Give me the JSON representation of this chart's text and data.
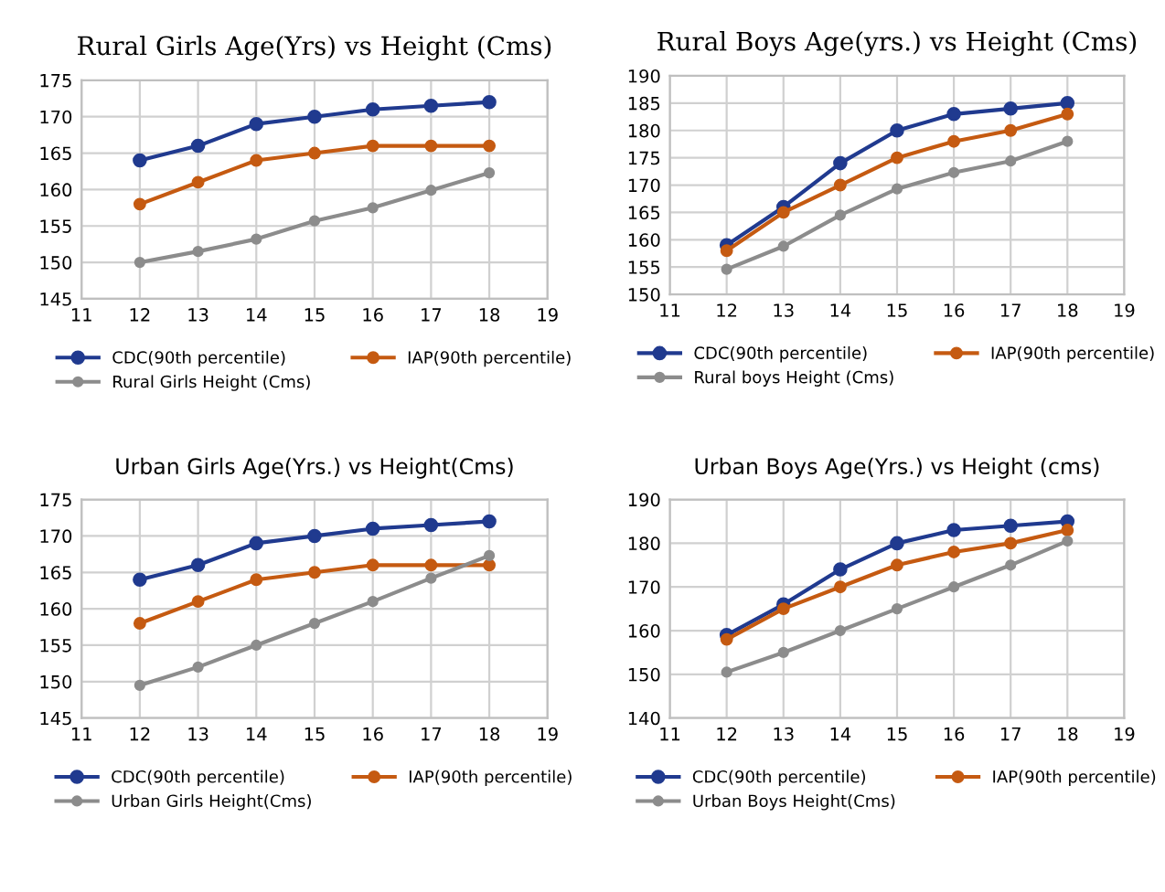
{
  "chart_data": [
    {
      "type": "line",
      "title": "Rural Girls Age(Yrs) vs Height (Cms)",
      "x": [
        12,
        13,
        14,
        15,
        16,
        17,
        18
      ],
      "xlim": [
        11,
        19
      ],
      "xticks": [
        11,
        12,
        13,
        14,
        15,
        16,
        17,
        18,
        19
      ],
      "ylim": [
        145,
        175
      ],
      "yticks": [
        145,
        150,
        155,
        160,
        165,
        170,
        175
      ],
      "grid": true,
      "legend": "bottom",
      "marker": "circle",
      "line_style": "solid",
      "series": [
        {
          "name": "CDC(90th percentile)",
          "color": "#203a8f",
          "values": [
            164,
            166,
            169,
            170,
            171,
            171.5,
            172
          ]
        },
        {
          "name": "IAP(90th percentile)",
          "color": "#c55a11",
          "values": [
            158,
            161,
            164,
            165,
            166,
            166,
            166
          ]
        },
        {
          "name": "Rural Girls Height (Cms)",
          "color": "#8c8c8c",
          "values": [
            150,
            151.5,
            153.2,
            155.7,
            157.5,
            159.9,
            162.3
          ]
        }
      ]
    },
    {
      "type": "line",
      "title": "Rural Boys Age(yrs.) vs Height (Cms)",
      "x": [
        12,
        13,
        14,
        15,
        16,
        17,
        18
      ],
      "xlim": [
        11,
        19
      ],
      "xticks": [
        11,
        12,
        13,
        14,
        15,
        16,
        17,
        18,
        19
      ],
      "ylim": [
        150,
        190
      ],
      "yticks": [
        150,
        155,
        160,
        165,
        170,
        175,
        180,
        185,
        190
      ],
      "grid": true,
      "legend": "bottom",
      "marker": "circle",
      "line_style": "solid",
      "series": [
        {
          "name": "CDC(90th percentile)",
          "color": "#203a8f",
          "values": [
            159,
            166,
            174,
            180,
            183,
            184,
            185
          ]
        },
        {
          "name": "IAP(90th percentile)",
          "color": "#c55a11",
          "values": [
            158,
            165,
            170,
            175,
            178,
            180,
            183
          ]
        },
        {
          "name": "Rural boys Height (Cms)",
          "color": "#8c8c8c",
          "values": [
            154.6,
            158.8,
            164.5,
            169.3,
            172.3,
            174.4,
            178
          ]
        }
      ]
    },
    {
      "type": "line",
      "title": "Urban Girls Age(Yrs.) vs Height(Cms)",
      "x": [
        12,
        13,
        14,
        15,
        16,
        17,
        18
      ],
      "xlim": [
        11,
        19
      ],
      "xticks": [
        11,
        12,
        13,
        14,
        15,
        16,
        17,
        18,
        19
      ],
      "ylim": [
        145,
        175
      ],
      "yticks": [
        145,
        150,
        155,
        160,
        165,
        170,
        175
      ],
      "grid": true,
      "legend": "bottom",
      "marker": "circle",
      "line_style": "solid",
      "series": [
        {
          "name": "CDC(90th percentile)",
          "color": "#203a8f",
          "values": [
            164,
            166,
            169,
            170,
            171,
            171.5,
            172
          ]
        },
        {
          "name": "IAP(90th percentile)",
          "color": "#c55a11",
          "values": [
            158,
            161,
            164,
            165,
            166,
            166,
            166
          ]
        },
        {
          "name": "Urban Girls Height(Cms)",
          "color": "#8c8c8c",
          "values": [
            149.5,
            152,
            155,
            158,
            161,
            164.2,
            167.3
          ]
        }
      ]
    },
    {
      "type": "line",
      "title": "Urban Boys Age(Yrs.) vs Height (cms)",
      "x": [
        12,
        13,
        14,
        15,
        16,
        17,
        18
      ],
      "xlim": [
        11,
        19
      ],
      "xticks": [
        11,
        12,
        13,
        14,
        15,
        16,
        17,
        18,
        19
      ],
      "ylim": [
        140,
        190
      ],
      "yticks": [
        140,
        150,
        160,
        170,
        180,
        190
      ],
      "grid": true,
      "legend": "bottom",
      "marker": "circle",
      "line_style": "solid",
      "series": [
        {
          "name": "CDC(90th percentile)",
          "color": "#203a8f",
          "values": [
            159,
            166,
            174,
            180,
            183,
            184,
            185
          ]
        },
        {
          "name": "IAP(90th percentile)",
          "color": "#c55a11",
          "values": [
            158,
            165,
            170,
            175,
            178,
            180,
            183
          ]
        },
        {
          "name": "Urban Boys Height(Cms)",
          "color": "#8c8c8c",
          "values": [
            150.5,
            155,
            160,
            165,
            170,
            175,
            180.5
          ]
        }
      ]
    }
  ]
}
